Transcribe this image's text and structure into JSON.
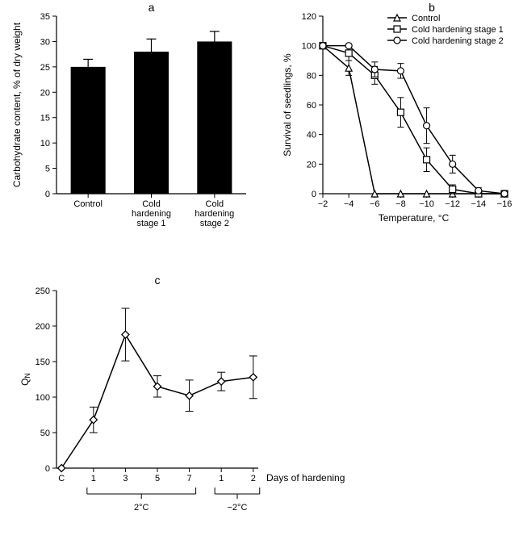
{
  "panel_a": {
    "label": "a",
    "type": "bar",
    "ylabel": "Carbohydrate content, % of dry weight",
    "ylim": [
      0,
      35
    ],
    "ytick_step": 5,
    "categories": [
      "Control",
      "Cold\nhardening\nstage 1",
      "Cold\nhardening\nstage 2"
    ],
    "values": [
      25,
      28,
      30
    ],
    "errors": [
      1.5,
      2.5,
      2.0
    ],
    "bar_color": "#000000",
    "error_color": "#000000",
    "axis_color": "#000000",
    "background_color": "#ffffff",
    "bar_width": 0.55,
    "label_fontsize": 12,
    "tick_fontsize": 11
  },
  "panel_b": {
    "label": "b",
    "type": "line",
    "ylabel": "Survival of seedlings, %",
    "xlabel": "Temperature, °C",
    "ylim": [
      0,
      120
    ],
    "ytick_step": 20,
    "x_values": [
      -2,
      -4,
      -6,
      -8,
      -10,
      -12,
      -14,
      -16
    ],
    "x_tick_labels": [
      "−2",
      "−4",
      "−6",
      "−8",
      "−10",
      "−12",
      "−14",
      "−16"
    ],
    "series": [
      {
        "name": "Control",
        "marker": "triangle",
        "y": [
          100,
          85,
          0,
          0,
          0,
          0,
          0,
          0
        ],
        "err": [
          0,
          5,
          0,
          0,
          0,
          0,
          0,
          0
        ],
        "color": "#000000"
      },
      {
        "name": "Cold hardening stage 1",
        "marker": "square",
        "y": [
          100,
          95,
          80,
          55,
          23,
          3,
          0,
          0
        ],
        "err": [
          0,
          5,
          6,
          10,
          8,
          3,
          0,
          0
        ],
        "color": "#000000"
      },
      {
        "name": "Cold hardening stage 2",
        "marker": "circle",
        "y": [
          100,
          100,
          84,
          83,
          46,
          20,
          2,
          0
        ],
        "err": [
          0,
          0,
          5,
          5,
          12,
          6,
          2,
          0
        ],
        "color": "#000000"
      }
    ],
    "axis_color": "#000000",
    "background_color": "#ffffff",
    "line_width": 1.5,
    "marker_size": 8
  },
  "panel_c": {
    "label": "c",
    "type": "line",
    "ylabel": "Q",
    "ylabel_sub": "N",
    "xlabel_right": "Days of hardening",
    "ylim": [
      0,
      250
    ],
    "ytick_step": 50,
    "x_positions": [
      0,
      1,
      2,
      3,
      4,
      5,
      6
    ],
    "x_tick_labels": [
      "C",
      "1",
      "3",
      "5",
      "7",
      "1",
      "2"
    ],
    "y": [
      0,
      68,
      188,
      115,
      102,
      122,
      128
    ],
    "err": [
      0,
      18,
      37,
      15,
      22,
      13,
      30
    ],
    "marker": "diamond",
    "color": "#000000",
    "axis_color": "#000000",
    "background_color": "#ffffff",
    "line_width": 1.5,
    "marker_size": 9,
    "group1_label": "2°C",
    "group2_label": "−2°C",
    "group1_range": [
      1,
      4
    ],
    "group2_range": [
      5,
      6
    ]
  }
}
